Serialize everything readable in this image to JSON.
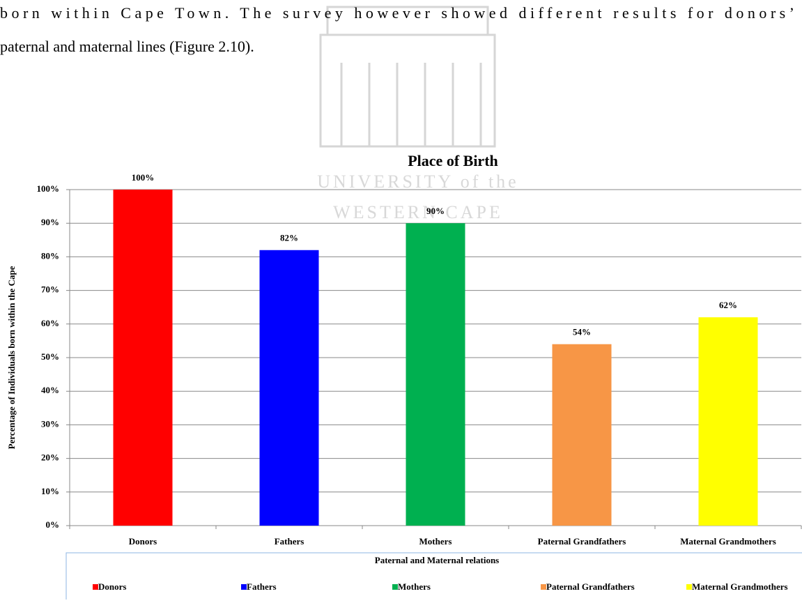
{
  "text_lines": [
    "born within Cape Town. The survey however showed different results for donors’",
    "paternal and maternal lines (Figure 2.10)."
  ],
  "watermark": [
    "UNIVERSITY of the",
    "WESTERN CAPE"
  ],
  "chart_data": {
    "type": "bar",
    "title": "Place of Birth",
    "x_label": "Paternal and Maternal relations",
    "y_label": "Percentage of Individuals born within the Cape",
    "categories": [
      "Donors",
      "Fathers",
      "Mothers",
      "Paternal Grandfathers",
      "Maternal Grandmothers"
    ],
    "values": [
      100,
      82,
      90,
      54,
      62
    ],
    "value_labels": [
      "100%",
      "82%",
      "90%",
      "54%",
      "62%"
    ],
    "colors": [
      "#ff0000",
      "#0000ff",
      "#00b050",
      "#f79646",
      "#ffff00"
    ],
    "ylim": [
      0,
      100
    ],
    "yticks": [
      {
        "value": 0,
        "label": "0%"
      },
      {
        "value": 10,
        "label": "10%"
      },
      {
        "value": 20,
        "label": "20%"
      },
      {
        "value": 30,
        "label": "30%"
      },
      {
        "value": 40,
        "label": "40%"
      },
      {
        "value": 50,
        "label": "50%"
      },
      {
        "value": 60,
        "label": "60%"
      },
      {
        "value": 70,
        "label": "70%"
      },
      {
        "value": 80,
        "label": "80%"
      },
      {
        "value": 90,
        "label": "90%"
      },
      {
        "value": 100,
        "label": "100%"
      }
    ],
    "grid": true,
    "legend": "bottom"
  }
}
